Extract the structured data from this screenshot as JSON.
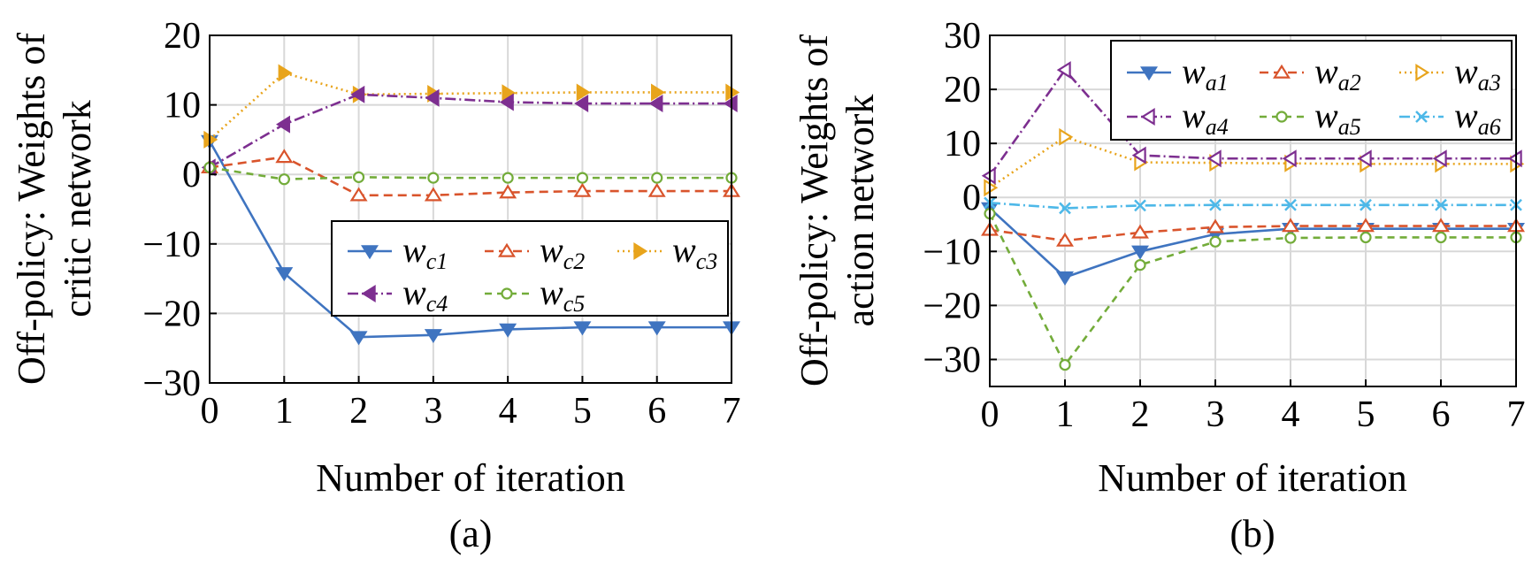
{
  "chart_data": [
    {
      "type": "line",
      "panel_label": "(a)",
      "xlabel": "Number of iteration",
      "ylabel_line1": "Off-policy: Weights of",
      "ylabel_line2": "critic network",
      "xlim": [
        0,
        7
      ],
      "ylim": [
        -30,
        20
      ],
      "xticks": [
        0,
        1,
        2,
        3,
        4,
        5,
        6,
        7
      ],
      "yticks": [
        -30,
        -20,
        -10,
        0,
        10,
        20
      ],
      "ytick_labels": [
        "−30",
        "−20",
        "−10",
        "0",
        "10",
        "20"
      ],
      "grid": true,
      "legend_position": "lower-right",
      "x": [
        0,
        1,
        2,
        3,
        4,
        5,
        6,
        7
      ],
      "series": [
        {
          "name": "w",
          "sub": "c1",
          "color": "#3f74c0",
          "dash": "",
          "marker": "triangle-down",
          "values": [
            4.8,
            -14.2,
            -23.4,
            -23.1,
            -22.3,
            -22.0,
            -22.0,
            -22.0
          ]
        },
        {
          "name": "w",
          "sub": "c2",
          "color": "#d9542c",
          "dash": "10,6",
          "marker": "triangle-up-open",
          "values": [
            1.0,
            2.5,
            -3.0,
            -3.0,
            -2.6,
            -2.4,
            -2.4,
            -2.4
          ]
        },
        {
          "name": "w",
          "sub": "c3",
          "color": "#e8a41c",
          "dash": "2,4",
          "marker": "triangle-right",
          "values": [
            5.0,
            14.6,
            11.5,
            11.6,
            11.7,
            11.8,
            11.8,
            11.8
          ]
        },
        {
          "name": "w",
          "sub": "c4",
          "color": "#7d2f90",
          "dash": "12,4,2,4",
          "marker": "triangle-left",
          "values": [
            1.0,
            7.2,
            11.5,
            11.0,
            10.4,
            10.2,
            10.2,
            10.2
          ]
        },
        {
          "name": "w",
          "sub": "c5",
          "color": "#73ac3a",
          "dash": "8,6",
          "marker": "circle-open",
          "values": [
            1.0,
            -0.7,
            -0.4,
            -0.5,
            -0.5,
            -0.5,
            -0.5,
            -0.5
          ]
        }
      ]
    },
    {
      "type": "line",
      "panel_label": "(b)",
      "xlabel": "Number of iteration",
      "ylabel_line1": "Off-policy: Weights of",
      "ylabel_line2": "action network",
      "xlim": [
        0,
        7
      ],
      "ylim": [
        -35,
        30
      ],
      "xticks": [
        0,
        1,
        2,
        3,
        4,
        5,
        6,
        7
      ],
      "yticks": [
        -30,
        -20,
        -10,
        0,
        10,
        20,
        30
      ],
      "ytick_labels": [
        "−30",
        "−20",
        "−10",
        "0",
        "10",
        "20",
        "30"
      ],
      "grid": true,
      "legend_position": "upper-right",
      "x": [
        0,
        1,
        2,
        3,
        4,
        5,
        6,
        7
      ],
      "series": [
        {
          "name": "w",
          "sub": "a1",
          "color": "#3f74c0",
          "dash": "",
          "marker": "triangle-down",
          "values": [
            -2.0,
            -14.8,
            -10.0,
            -6.8,
            -5.8,
            -5.8,
            -5.8,
            -5.8
          ]
        },
        {
          "name": "w",
          "sub": "a2",
          "color": "#d9542c",
          "dash": "10,6",
          "marker": "triangle-up-open",
          "values": [
            -6.0,
            -8.0,
            -6.5,
            -5.5,
            -5.3,
            -5.3,
            -5.3,
            -5.3
          ]
        },
        {
          "name": "w",
          "sub": "a3",
          "color": "#e8a41c",
          "dash": "2,4",
          "marker": "triangle-right-open",
          "values": [
            1.8,
            11.2,
            6.5,
            6.4,
            6.3,
            6.2,
            6.2,
            6.2
          ]
        },
        {
          "name": "w",
          "sub": "a4",
          "color": "#7d2f90",
          "dash": "12,4,2,4",
          "marker": "triangle-left-open",
          "values": [
            4.0,
            23.6,
            7.8,
            7.2,
            7.2,
            7.2,
            7.2,
            7.2
          ]
        },
        {
          "name": "w",
          "sub": "a5",
          "color": "#73ac3a",
          "dash": "8,6",
          "marker": "circle-open",
          "values": [
            -3.0,
            -31.0,
            -12.5,
            -8.2,
            -7.5,
            -7.4,
            -7.4,
            -7.4
          ]
        },
        {
          "name": "w",
          "sub": "a6",
          "color": "#4db8e8",
          "dash": "12,4,2,4",
          "marker": "x",
          "values": [
            -1.0,
            -2.0,
            -1.5,
            -1.4,
            -1.4,
            -1.4,
            -1.4,
            -1.4
          ]
        }
      ]
    }
  ]
}
